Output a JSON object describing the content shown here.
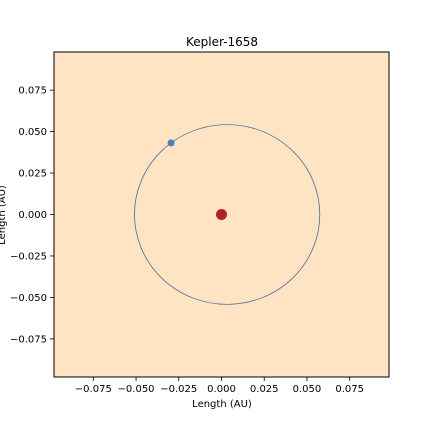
{
  "chart_data": {
    "type": "scatter",
    "title": "Kepler-1658",
    "xlabel": "Length (AU)",
    "ylabel": "Length (AU)",
    "xlim": [
      -0.098,
      0.098
    ],
    "ylim": [
      -0.098,
      0.098
    ],
    "grid": false,
    "x_ticks": [
      -0.075,
      -0.05,
      -0.025,
      0.0,
      0.025,
      0.05,
      0.075
    ],
    "y_ticks": [
      -0.075,
      -0.05,
      -0.025,
      0.0,
      0.025,
      0.05,
      0.075
    ],
    "x_tick_labels": [
      "−0.075",
      "−0.050",
      "−0.025",
      "0.000",
      "0.025",
      "0.050",
      "0.075"
    ],
    "y_tick_labels": [
      "−0.075",
      "−0.050",
      "−0.025",
      "0.000",
      "0.025",
      "0.050",
      "0.075"
    ],
    "star": {
      "x": 0.0,
      "y": 0.0,
      "color": "#b22222"
    },
    "planet": {
      "x": -0.0295,
      "y": 0.0432,
      "color": "#4682b4"
    },
    "orbit": {
      "center_x": 0.0033,
      "center_y": 0.0,
      "semi_major": 0.0542,
      "semi_minor": 0.0542,
      "color": "#4f6d96"
    },
    "plot_background": "#ffe4c4"
  }
}
